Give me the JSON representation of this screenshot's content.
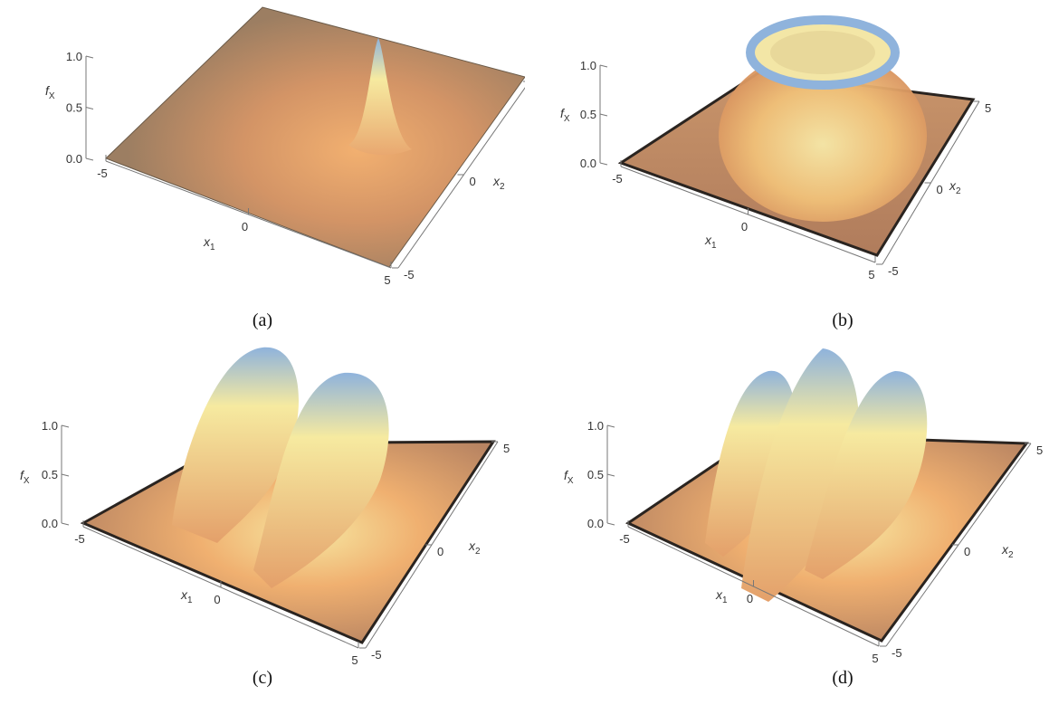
{
  "chart_data": [
    {
      "type": "surface",
      "panel": "(a)",
      "z_label": "f",
      "z_sub": "X",
      "x1_label": "x",
      "x1_sub": "1",
      "x2_label": "x",
      "x2_sub": "2",
      "x1_ticks": [
        "-5",
        "0",
        "5"
      ],
      "x2_ticks": [
        "5",
        "0",
        "-5"
      ],
      "z_ticks": [
        "0.0",
        "0.5",
        "1.0"
      ],
      "x1_range": [
        -5,
        5
      ],
      "x2_range": [
        -5,
        5
      ],
      "z_range": [
        0,
        1
      ],
      "shape": "single Gaussian peak at origin",
      "peak": 1.0
    },
    {
      "type": "surface",
      "panel": "(b)",
      "z_label": "f",
      "z_sub": "X",
      "x1_label": "x",
      "x1_sub": "1",
      "x2_label": "x",
      "x2_sub": "2",
      "x1_ticks": [
        "-5",
        "0",
        "5"
      ],
      "x2_ticks": [
        "5",
        "0",
        "-5"
      ],
      "z_ticks": [
        "0.0",
        "0.5",
        "1.0"
      ],
      "x1_range": [
        -5,
        5
      ],
      "x2_range": [
        -5,
        5
      ],
      "z_range": [
        0,
        1
      ],
      "shape": "ring (crater) centred on origin",
      "peak": 1.0
    },
    {
      "type": "surface",
      "panel": "(c)",
      "z_label": "f",
      "z_sub": "X",
      "x1_label": "x",
      "x1_sub": "1",
      "x2_label": "x",
      "x2_sub": "2",
      "x1_ticks": [
        "-5",
        "0",
        "5"
      ],
      "x2_ticks": [
        "5",
        "0",
        "-5"
      ],
      "z_ticks": [
        "0.0",
        "0.5",
        "1.0"
      ],
      "x1_range": [
        -5,
        5
      ],
      "x2_range": [
        -5,
        5
      ],
      "z_range": [
        0,
        1
      ],
      "shape": "two adjoining ring lobes",
      "peak": 1.0
    },
    {
      "type": "surface",
      "panel": "(d)",
      "z_label": "f",
      "z_sub": "X",
      "x1_label": "x",
      "x1_sub": "1",
      "x2_label": "x",
      "x2_sub": "2",
      "x1_ticks": [
        "-5",
        "0",
        "5"
      ],
      "x2_ticks": [
        "5",
        "0",
        "-5"
      ],
      "z_ticks": [
        "0.0",
        "0.5",
        "1.0"
      ],
      "x1_range": [
        -5,
        5
      ],
      "x2_range": [
        -5,
        5
      ],
      "z_range": [
        0,
        1
      ],
      "shape": "multi-lobed cluster of peaks",
      "peak": 1.0
    }
  ],
  "colors": {
    "base_dark": "#9a7a5a",
    "base_orange": "#e08a4c",
    "mid_yellow": "#f6eaa0",
    "top_blue": "#8fb3dc"
  }
}
